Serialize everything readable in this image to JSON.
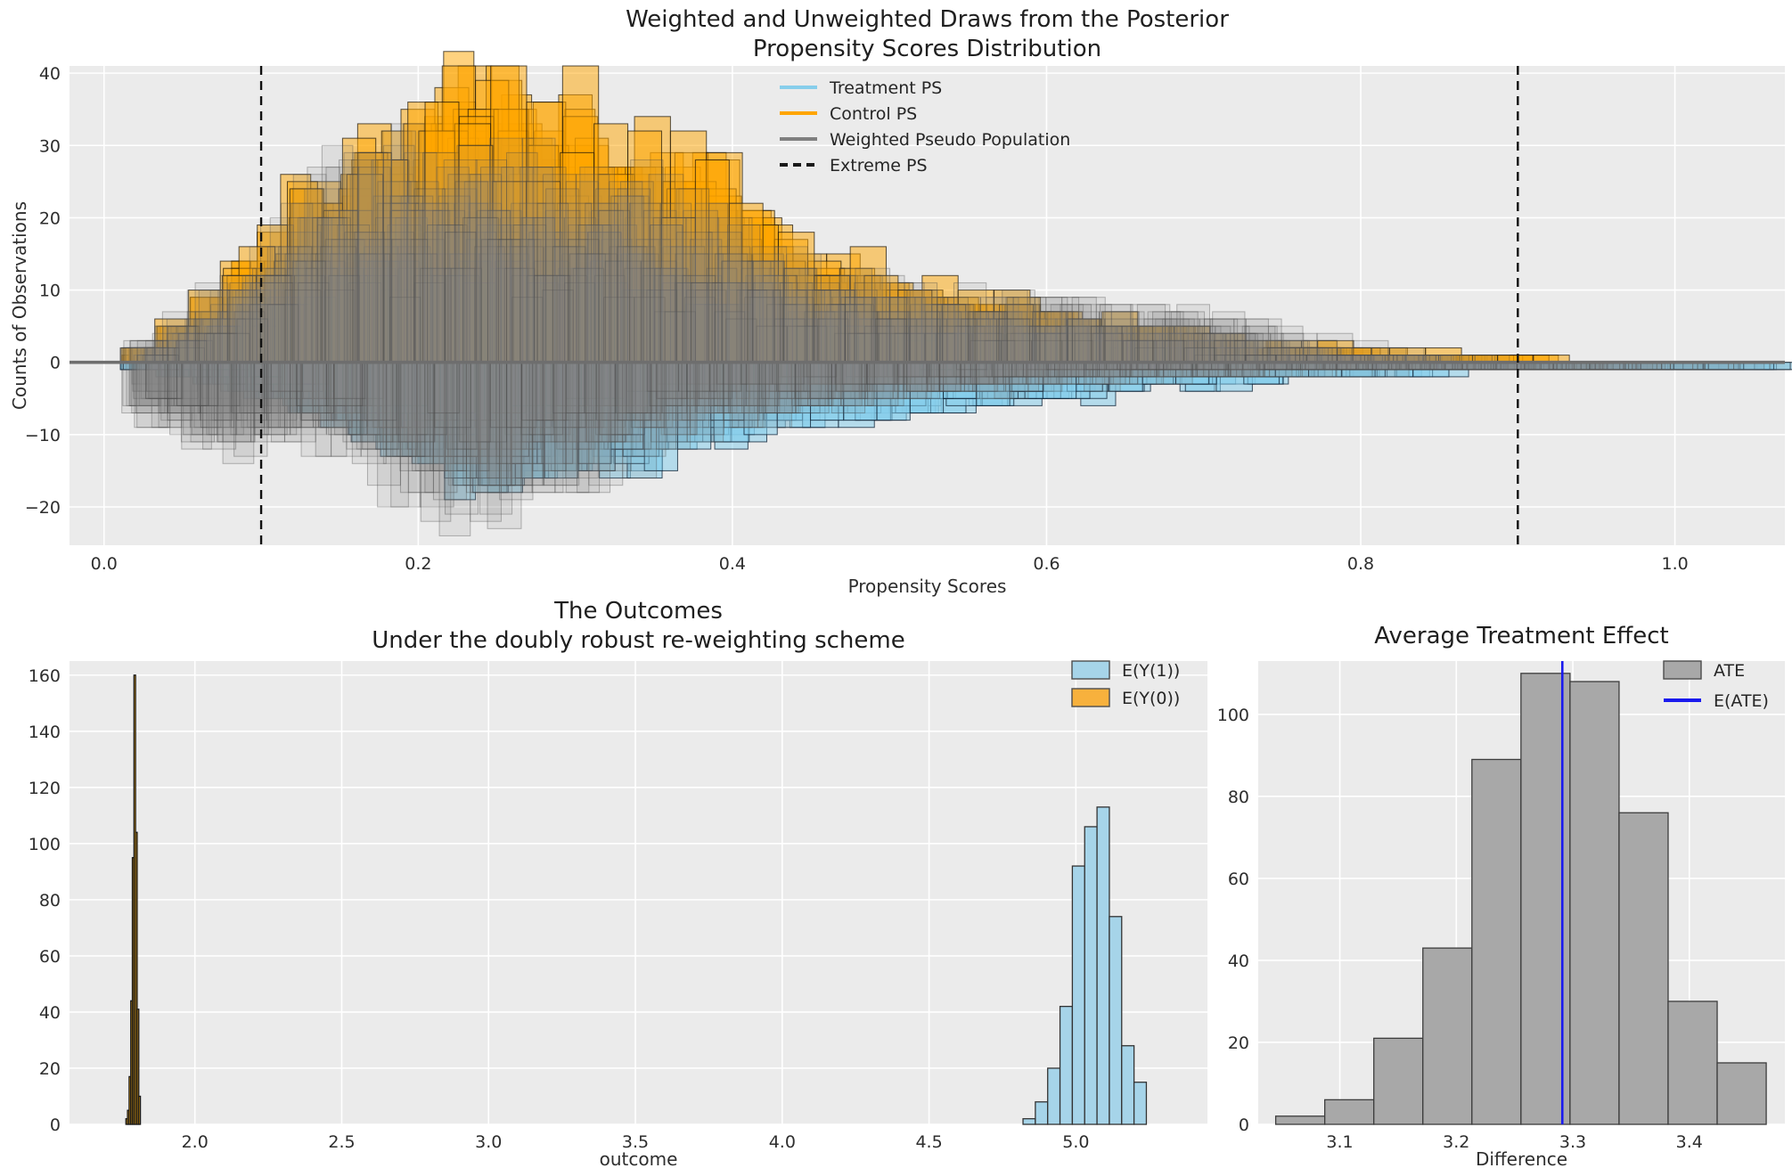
{
  "figure": {
    "background": "#ffffff",
    "panel_background": "#ebebeb",
    "grid_color": "#ffffff",
    "tick_text_color": "#2e2e2e",
    "zero_line_color": "#6e6e6e",
    "extreme_ps_line_color": "#111111"
  },
  "chart_data": [
    {
      "id": "propensity-draws",
      "type": "bar",
      "subtype": "overlaid-posterior-histogram-draws",
      "title_lines": [
        "Weighted and Unweighted Draws from the Posterior",
        "Propensity Scores Distribution"
      ],
      "xlabel": "Propensity Scores",
      "ylabel": "Counts of Observations",
      "xlim": [
        -0.022,
        1.07
      ],
      "ylim": [
        -25.3,
        41
      ],
      "xticks": [
        "0.0",
        "0.2",
        "0.4",
        "0.6",
        "0.8",
        "1.0"
      ],
      "xtick_values": [
        0.0,
        0.2,
        0.4,
        0.6,
        0.8,
        1.0
      ],
      "yticks": [
        "−20",
        "−10",
        "0",
        "10",
        "20",
        "30",
        "40"
      ],
      "ytick_values": [
        -20,
        -10,
        0,
        10,
        20,
        30,
        40
      ],
      "grid": true,
      "extreme_ps_values": [
        0.1,
        0.9
      ],
      "zero_line_y": 0,
      "bin_width": 0.02,
      "series": [
        {
          "name": "Control PS",
          "side": "up",
          "bin_start": 0.02,
          "draws": 24,
          "fill": "rgba(255,165,0,0.50)",
          "edge": "rgba(25,20,10,0.70)",
          "envelope": [
            2,
            5,
            9,
            14,
            18,
            24,
            28,
            29,
            33,
            36,
            38,
            38,
            37,
            33,
            31,
            29,
            28,
            26,
            22,
            19,
            15,
            13,
            11,
            10,
            9,
            8,
            8,
            7,
            6,
            6,
            5,
            4,
            3,
            3,
            2,
            2,
            2,
            1,
            1,
            1
          ]
        },
        {
          "name": "Treatment PS",
          "side": "down",
          "bin_start": 0.02,
          "draws": 24,
          "fill": "rgba(135,206,235,0.55)",
          "edge": "rgba(15,35,55,0.75)",
          "envelope": [
            1,
            2,
            3,
            4,
            6,
            7,
            9,
            11,
            13,
            15,
            17,
            16,
            15,
            14,
            15,
            14,
            12,
            11,
            10,
            9,
            9,
            8,
            7,
            7,
            6,
            6,
            5,
            5,
            4,
            4,
            4,
            3,
            3,
            2,
            2,
            2,
            2,
            1,
            1,
            1,
            1,
            1,
            1,
            1,
            1,
            1
          ]
        },
        {
          "name": "Weighted Pseudo Population",
          "side": "up",
          "bin_start": 0.02,
          "draws": 20,
          "fill": "rgba(128,128,128,0.13)",
          "edge": "rgba(70,70,70,0.35)",
          "envelope": [
            3,
            6,
            10,
            15,
            20,
            25,
            28,
            30,
            30,
            30,
            30,
            29,
            28,
            27,
            26,
            25,
            23,
            21,
            19,
            17,
            15,
            13,
            12,
            11,
            10,
            10,
            9,
            9,
            9,
            8,
            8,
            8,
            7,
            6,
            5,
            3,
            2,
            1,
            1,
            1
          ]
        },
        {
          "name": "Weighted Pseudo Population",
          "side": "down",
          "bin_start": 0.02,
          "draws": 20,
          "fill": "rgba(128,128,128,0.13)",
          "edge": "rgba(70,70,70,0.35)",
          "envelope": [
            8,
            10,
            12,
            12,
            11,
            11,
            13,
            16,
            18,
            19,
            21,
            19,
            17,
            16,
            14,
            12,
            10,
            9,
            8,
            7,
            6,
            6,
            5,
            5,
            4,
            4,
            4,
            3,
            3,
            3,
            2,
            2,
            2,
            2,
            2,
            1,
            1,
            1,
            1,
            1,
            1,
            1,
            1,
            1,
            1,
            1
          ]
        }
      ],
      "legend": [
        {
          "label": "Treatment PS",
          "swatch": "line",
          "color": "#87CEEB"
        },
        {
          "label": "Control PS",
          "swatch": "line",
          "color": "#FFA500"
        },
        {
          "label": "Weighted Pseudo Population",
          "swatch": "line",
          "color": "#7f7f7f"
        },
        {
          "label": "Extreme PS",
          "swatch": "dashed-line",
          "color": "#1a1a1a"
        }
      ]
    },
    {
      "id": "outcomes",
      "type": "bar",
      "subtype": "histogram",
      "title_lines": [
        "The Outcomes",
        "Under the doubly robust re-weighting scheme"
      ],
      "xlabel": "outcome",
      "ylabel": "",
      "xlim": [
        1.573,
        5.448
      ],
      "ylim": [
        0,
        165
      ],
      "xticks": [
        "2.0",
        "2.5",
        "3.0",
        "3.5",
        "4.0",
        "4.5",
        "5.0"
      ],
      "xtick_values": [
        2.0,
        2.5,
        3.0,
        3.5,
        4.0,
        4.5,
        5.0
      ],
      "yticks": [
        "0",
        "20",
        "40",
        "60",
        "80",
        "100",
        "120",
        "140",
        "160"
      ],
      "ytick_values": [
        0,
        20,
        40,
        60,
        80,
        100,
        120,
        140,
        160
      ],
      "grid": true,
      "series": [
        {
          "name": "E(Y(1))",
          "bin_start": 4.82,
          "bin_width": 0.042,
          "fill": "#a6d4e9",
          "edge": "#333333",
          "values": [
            2,
            8,
            20,
            42,
            92,
            106,
            113,
            74,
            28,
            15
          ]
        },
        {
          "name": "E(Y(0))",
          "bin_start": 1.765,
          "bin_width": 0.0055,
          "fill": "#eda20c",
          "edge": "#1a1a1a",
          "values": [
            2,
            5,
            17,
            44,
            95,
            160,
            104,
            41,
            10
          ]
        }
      ],
      "legend": [
        {
          "label": "E(Y(1))",
          "swatch": "patch",
          "color": "#a6d4e9"
        },
        {
          "label": "E(Y(0))",
          "swatch": "patch",
          "color": "#f7b13d"
        }
      ]
    },
    {
      "id": "ate",
      "type": "bar",
      "subtype": "histogram",
      "title_lines": [
        "Average Treatment Effect"
      ],
      "xlabel": "Difference",
      "ylabel": "",
      "xlim": [
        3.03,
        3.482
      ],
      "ylim": [
        0,
        113
      ],
      "xticks": [
        "3.1",
        "3.2",
        "3.3",
        "3.4"
      ],
      "xtick_values": [
        3.1,
        3.2,
        3.3,
        3.4
      ],
      "yticks": [
        "0",
        "20",
        "40",
        "60",
        "80",
        "100"
      ],
      "ytick_values": [
        0,
        20,
        40,
        60,
        80,
        100
      ],
      "grid": true,
      "series": [
        {
          "name": "ATE",
          "bin_start": 3.045,
          "bin_width": 0.0421,
          "fill": "#a8a8a8",
          "edge": "#3d3d3d",
          "values": [
            2,
            6,
            21,
            43,
            89,
            110,
            108,
            76,
            30,
            15
          ]
        }
      ],
      "e_ate": 3.291,
      "e_ate_color": "#1a1aee",
      "legend": [
        {
          "label": "ATE",
          "swatch": "patch",
          "color": "#a8a8a8"
        },
        {
          "label": "E(ATE)",
          "swatch": "line",
          "color": "#1a1aee"
        }
      ]
    }
  ]
}
